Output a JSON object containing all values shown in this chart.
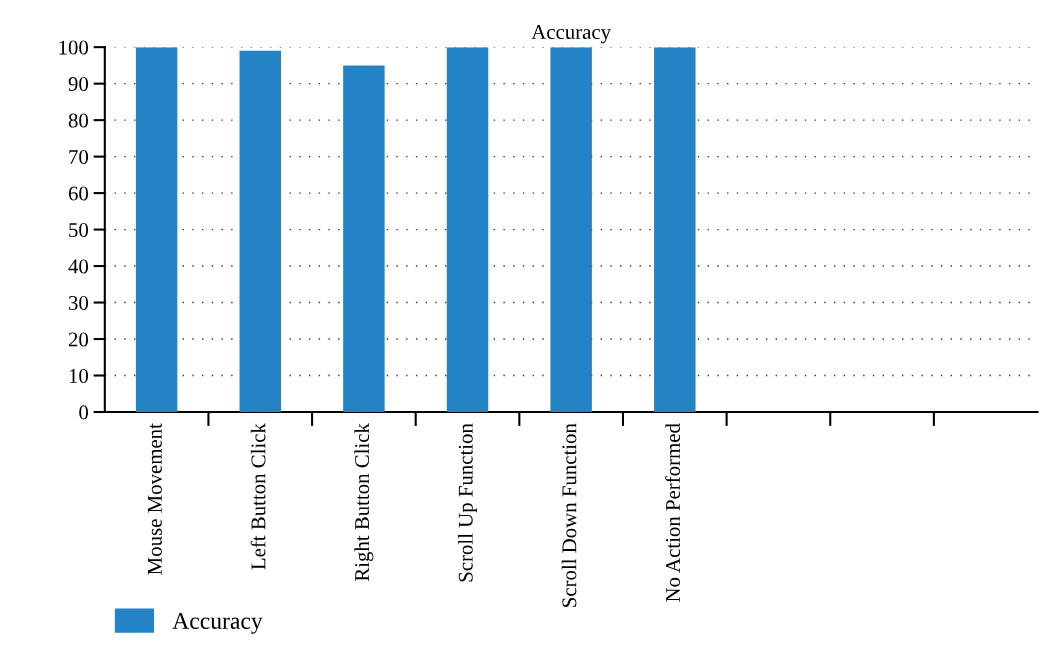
{
  "chart_data": {
    "type": "bar",
    "title": "Accuracy",
    "categories": [
      "Mouse Movement",
      "Left Button Click",
      "Right Button Click",
      "Scroll Up Function",
      "Scroll Down Function",
      "No Action Performed",
      null,
      null,
      null
    ],
    "series": [
      {
        "name": "Accuracy",
        "color": "#2383c4",
        "values": [
          100,
          99,
          95,
          100,
          100,
          100,
          null,
          null,
          null
        ]
      }
    ],
    "ylim": [
      0,
      100
    ],
    "yticks": [
      0,
      10,
      20,
      30,
      40,
      50,
      60,
      70,
      80,
      90,
      100
    ],
    "grid": "y",
    "legend": "bottom left"
  }
}
